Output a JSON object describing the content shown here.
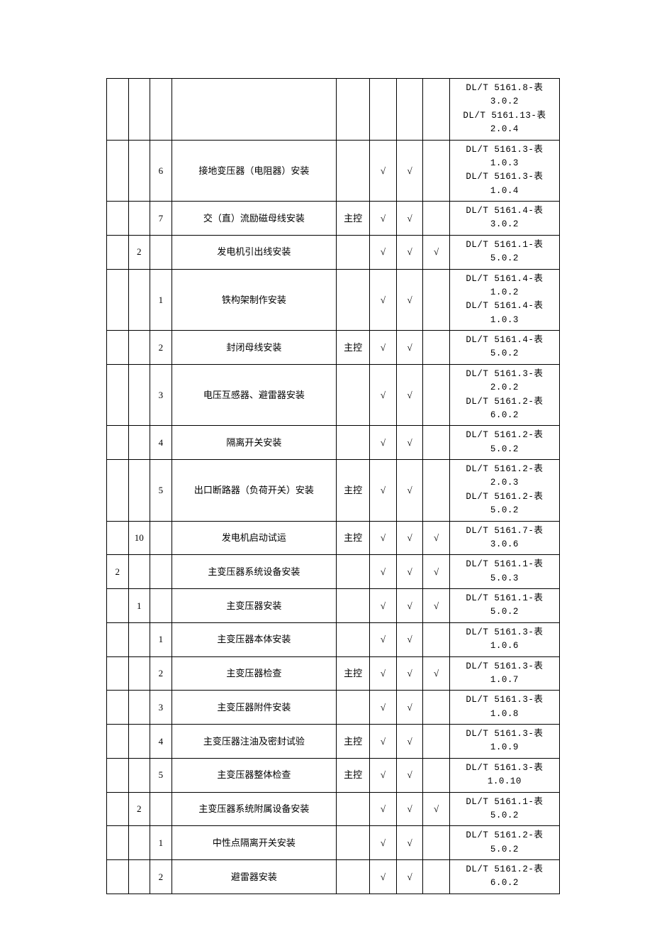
{
  "check": "√",
  "zhukong": "主控",
  "rows": [
    {
      "a": "",
      "b": "",
      "c": "",
      "d": "",
      "e": "",
      "f": "",
      "g": "",
      "h": "",
      "i": "DL/T 5161.8-表3.0.2\nDL/T 5161.13-表2.0.4"
    },
    {
      "a": "",
      "b": "",
      "c": "6",
      "d": "接地变压器（电阻器）安装",
      "e": "",
      "f": "√",
      "g": "√",
      "h": "",
      "i": "DL/T 5161.3-表1.0.3\nDL/T 5161.3-表1.0.4"
    },
    {
      "a": "",
      "b": "",
      "c": "7",
      "d": "交（直）流励磁母线安装",
      "e": "主控",
      "f": "√",
      "g": "√",
      "h": "",
      "i": "DL/T 5161.4-表3.0.2"
    },
    {
      "a": "",
      "b": "2",
      "c": "",
      "d": "发电机引出线安装",
      "e": "",
      "f": "√",
      "g": "√",
      "h": "√",
      "i": "DL/T 5161.1-表5.0.2"
    },
    {
      "a": "",
      "b": "",
      "c": "1",
      "d": "铁构架制作安装",
      "e": "",
      "f": "√",
      "g": "√",
      "h": "",
      "i": "DL/T 5161.4-表1.0.2\nDL/T 5161.4-表1.0.3"
    },
    {
      "a": "",
      "b": "",
      "c": "2",
      "d": "封闭母线安装",
      "e": "主控",
      "f": "√",
      "g": "√",
      "h": "",
      "i": "DL/T 5161.4-表5.0.2"
    },
    {
      "a": "",
      "b": "",
      "c": "3",
      "d": "电压互感器、避雷器安装",
      "e": "",
      "f": "√",
      "g": "√",
      "h": "",
      "i": "DL/T 5161.3-表2.0.2\nDL/T 5161.2-表6.0.2"
    },
    {
      "a": "",
      "b": "",
      "c": "4",
      "d": "隔离开关安装",
      "e": "",
      "f": "√",
      "g": "√",
      "h": "",
      "i": "DL/T 5161.2-表5.0.2"
    },
    {
      "a": "",
      "b": "",
      "c": "5",
      "d": "出口断路器（负荷开关）安装",
      "e": "主控",
      "f": "√",
      "g": "√",
      "h": "",
      "i": "DL/T 5161.2-表2.0.3\nDL/T 5161.2-表5.0.2"
    },
    {
      "a": "",
      "b": "10",
      "c": "",
      "d": "发电机启动试运",
      "e": "主控",
      "f": "√",
      "g": "√",
      "h": "√",
      "i": "DL/T 5161.7-表3.0.6"
    },
    {
      "a": "2",
      "b": "",
      "c": "",
      "d": "主变压器系统设备安装",
      "e": "",
      "f": "√",
      "g": "√",
      "h": "√",
      "i": "DL/T 5161.1-表5.0.3"
    },
    {
      "a": "",
      "b": "1",
      "c": "",
      "d": "主变压器安装",
      "e": "",
      "f": "√",
      "g": "√",
      "h": "√",
      "i": "DL/T 5161.1-表5.0.2"
    },
    {
      "a": "",
      "b": "",
      "c": "1",
      "d": "主变压器本体安装",
      "e": "",
      "f": "√",
      "g": "√",
      "h": "",
      "i": "DL/T 5161.3-表1.0.6"
    },
    {
      "a": "",
      "b": "",
      "c": "2",
      "d": "主变压器检查",
      "e": "主控",
      "f": "√",
      "g": "√",
      "h": "√",
      "i": "DL/T 5161.3-表1.0.7"
    },
    {
      "a": "",
      "b": "",
      "c": "3",
      "d": "主变压器附件安装",
      "e": "",
      "f": "√",
      "g": "√",
      "h": "",
      "i": "DL/T 5161.3-表1.0.8"
    },
    {
      "a": "",
      "b": "",
      "c": "4",
      "d": "主变压器注油及密封试验",
      "e": "主控",
      "f": "√",
      "g": "√",
      "h": "",
      "i": "DL/T 5161.3-表1.0.9"
    },
    {
      "a": "",
      "b": "",
      "c": "5",
      "d": "主变压器整体检查",
      "e": "主控",
      "f": "√",
      "g": "√",
      "h": "",
      "i": "DL/T 5161.3-表1.0.10"
    },
    {
      "a": "",
      "b": "2",
      "c": "",
      "d": "主变压器系统附属设备安装",
      "e": "",
      "f": "√",
      "g": "√",
      "h": "√",
      "i": "DL/T 5161.1-表5.0.2"
    },
    {
      "a": "",
      "b": "",
      "c": "1",
      "d": "中性点隔离开关安装",
      "e": "",
      "f": "√",
      "g": "√",
      "h": "",
      "i": "DL/T 5161.2-表5.0.2"
    },
    {
      "a": "",
      "b": "",
      "c": "2",
      "d": "避雷器安装",
      "e": "",
      "f": "√",
      "g": "√",
      "h": "",
      "i": "DL/T 5161.2-表6.0.2"
    }
  ]
}
